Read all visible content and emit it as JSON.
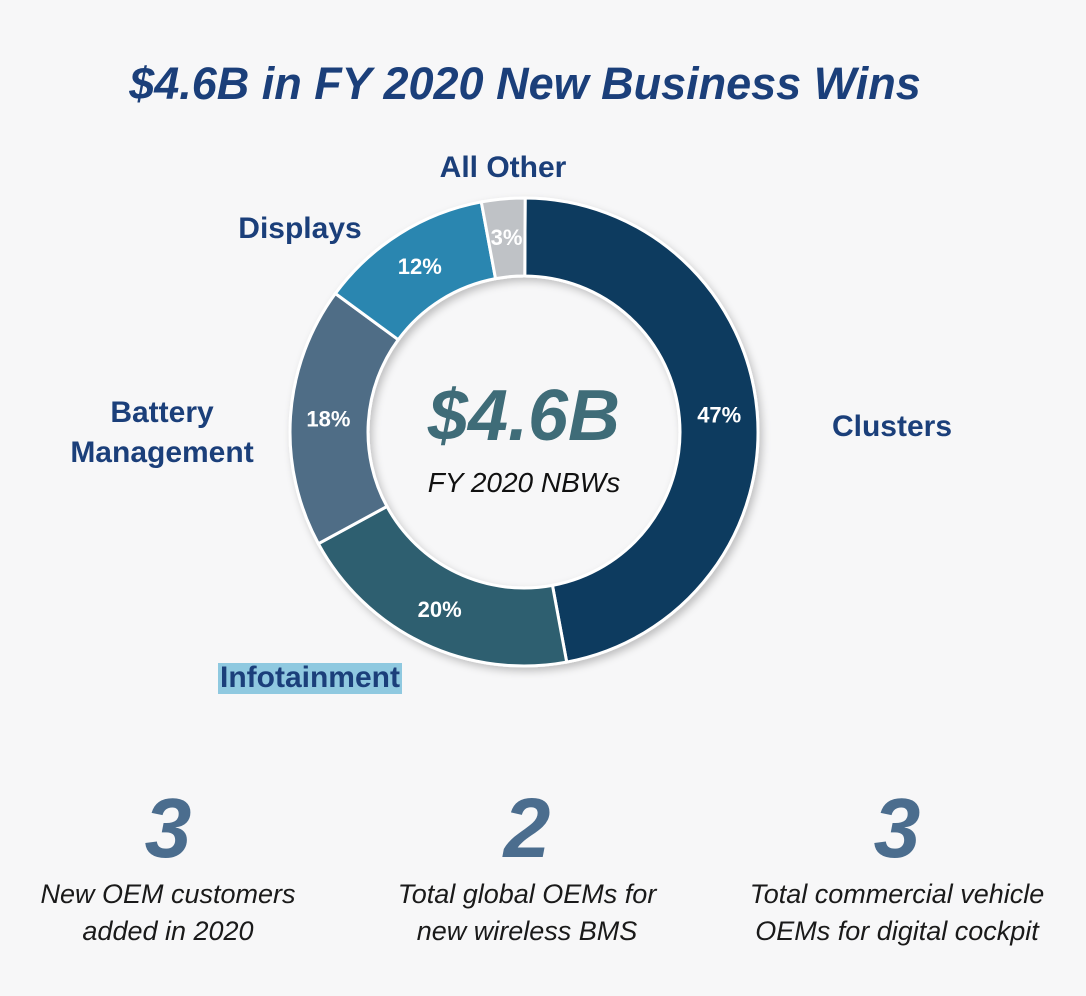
{
  "title": "$4.6B in FY 2020 New Business Wins",
  "chart_data": {
    "type": "pie",
    "style": "donut",
    "center_value": "$4.6B",
    "center_caption": "FY 2020 NBWs",
    "slices": [
      {
        "label": "Clusters",
        "value": 47,
        "value_label": "47%",
        "color": "#0e3a5e",
        "label_lines": [
          "Clusters"
        ]
      },
      {
        "label": "Infotainment",
        "value": 20,
        "value_label": "20%",
        "color": "#2e5e70",
        "label_lines": [
          "Infotainment"
        ],
        "label_highlight": "#8fc9e0"
      },
      {
        "label": "Battery Management",
        "value": 18,
        "value_label": "18%",
        "color": "#4f6d86",
        "label_lines": [
          "Battery",
          "Management"
        ]
      },
      {
        "label": "Displays",
        "value": 12,
        "value_label": "12%",
        "color": "#2a86b0",
        "label_lines": [
          "Displays"
        ]
      },
      {
        "label": "All Other",
        "value": 3,
        "value_label": "3%",
        "color": "#bfc2c6",
        "label_lines": [
          "All Other"
        ]
      }
    ],
    "label_color": "#1b3f7a",
    "value_label_color": "#ffffff"
  },
  "stats": [
    {
      "number": "3",
      "line1": "New OEM customers",
      "line2": "added in 2020"
    },
    {
      "number": "2",
      "line1": "Total global OEMs for",
      "line2": "new wireless BMS"
    },
    {
      "number": "3",
      "line1": "Total commercial vehicle",
      "line2": "OEMs for digital cockpit"
    }
  ]
}
